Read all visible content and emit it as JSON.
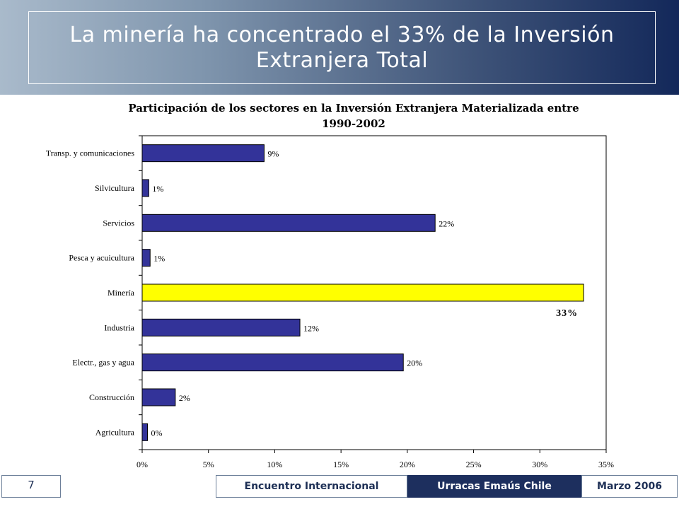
{
  "slide": {
    "title": "La minería ha concentrado el 33% de la Inversión Extranjera Total"
  },
  "footer": {
    "page_number": "7",
    "event": "Encuentro Internacional",
    "organization": "Urracas Emaús Chile",
    "date": "Marzo 2006"
  },
  "colors": {
    "header_dark": "#13285a",
    "header_light": "#a9bacb",
    "bar_default": "#333399",
    "bar_highlight": "#ffff00",
    "footer_dark": "#1d2f5e"
  },
  "chart_data": {
    "type": "bar",
    "orientation": "horizontal",
    "title": "Participación de los sectores en  la Inversión Extranjera Materializada  entre 1990-2002",
    "xlabel": "",
    "ylabel": "",
    "xlim": [
      0,
      0.35
    ],
    "xticks": [
      "0%",
      "5%",
      "10%",
      "15%",
      "20%",
      "25%",
      "30%",
      "35%"
    ],
    "grid": false,
    "legend": "none",
    "categories": [
      "Transp. y comunicaciones",
      "Silvicultura",
      "Servicios",
      "Pesca y acuicultura",
      "Minería",
      "Industria",
      "Electr., gas y agua",
      "Construcción",
      "Agricultura"
    ],
    "values": [
      0.092,
      0.005,
      0.221,
      0.006,
      0.333,
      0.119,
      0.197,
      0.025,
      0.004
    ],
    "value_labels": [
      "9%",
      "1%",
      "22%",
      "1%",
      "33%",
      "12%",
      "20%",
      "2%",
      "0%"
    ],
    "highlight_index": 4
  }
}
